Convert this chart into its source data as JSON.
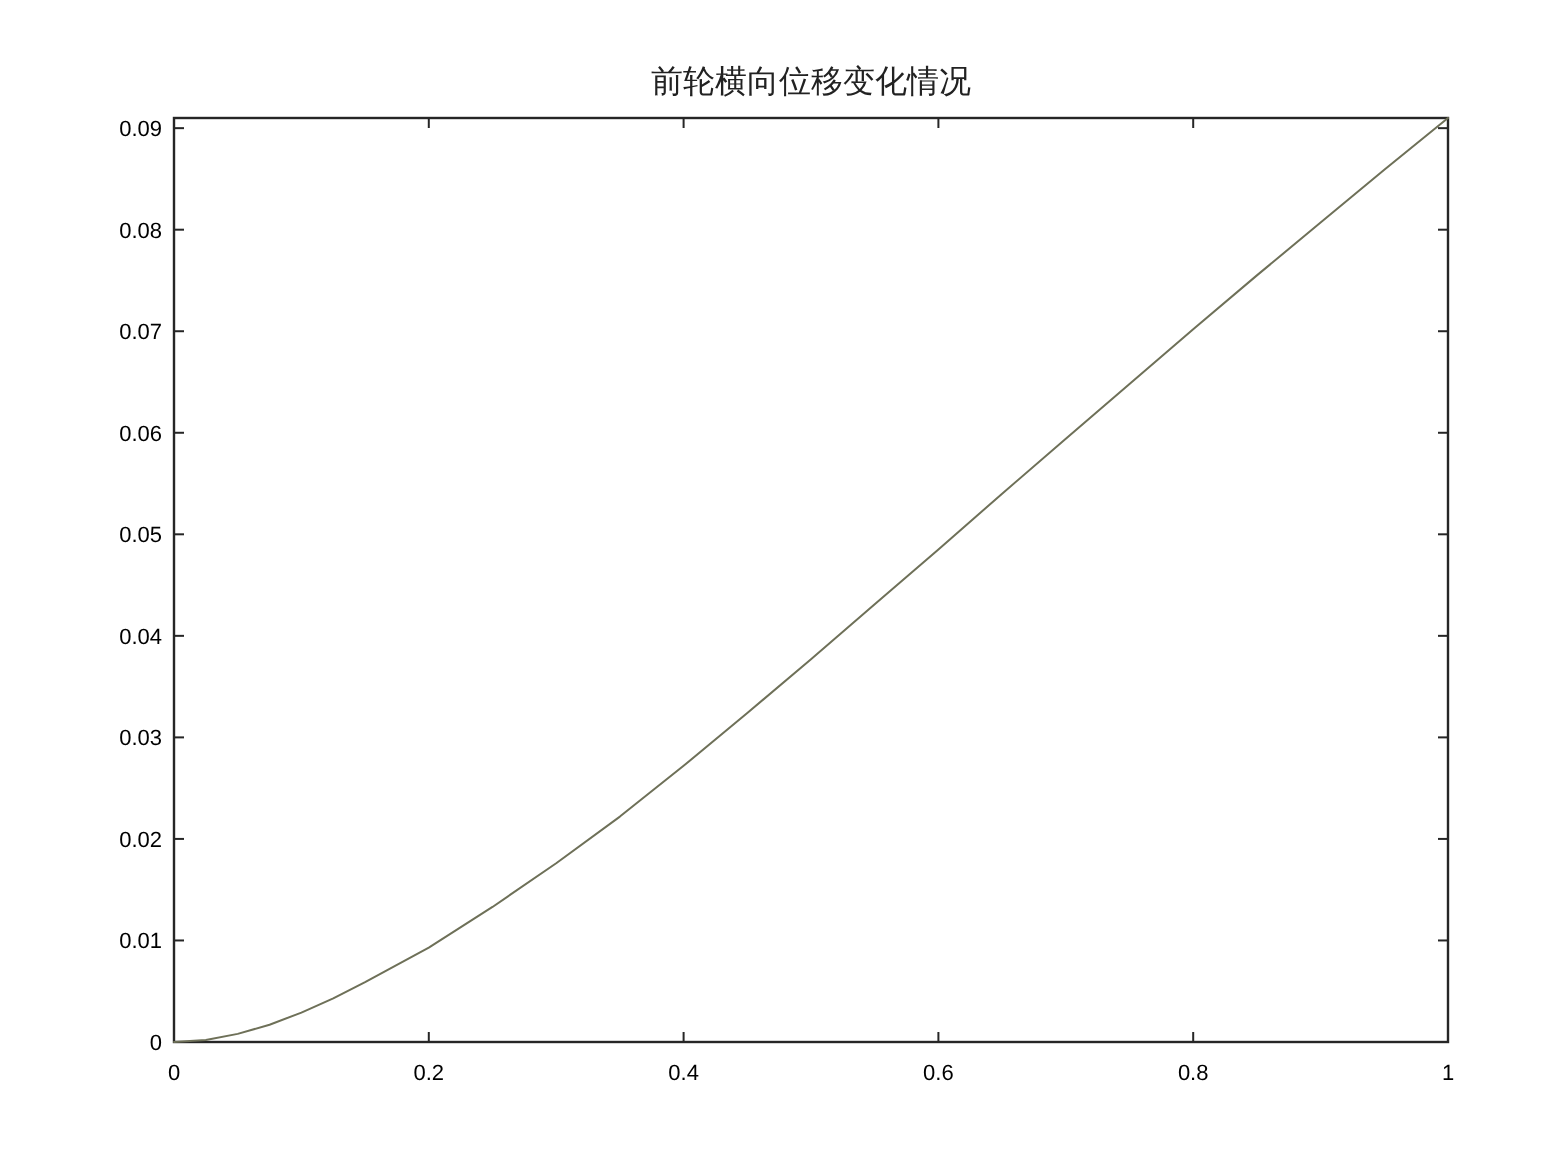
{
  "chart_data": {
    "type": "line",
    "title": "前轮横向位移变化情况",
    "x": [
      0,
      0.025,
      0.05,
      0.075,
      0.1,
      0.125,
      0.15,
      0.2,
      0.25,
      0.3,
      0.35,
      0.4,
      0.45,
      0.5,
      0.55,
      0.6,
      0.65,
      0.7,
      0.75,
      0.8,
      0.85,
      0.9,
      0.95,
      1
    ],
    "series": [
      {
        "color": "#6e7058",
        "values": [
          0,
          0.0002,
          0.0008,
          0.0017,
          0.0029,
          0.0043,
          0.0059,
          0.0093,
          0.0133,
          0.0176,
          0.0222,
          0.0272,
          0.0324,
          0.0377,
          0.0431,
          0.0485,
          0.054,
          0.0594,
          0.0648,
          0.0702,
          0.0755,
          0.0807,
          0.0859,
          0.091
        ]
      }
    ],
    "xlim": [
      0,
      1
    ],
    "ylim": [
      0,
      0.091
    ],
    "xticks": [
      0,
      0.2,
      0.4,
      0.6,
      0.8,
      1
    ],
    "yticks": [
      0,
      0.01,
      0.02,
      0.03,
      0.04,
      0.05,
      0.06,
      0.07,
      0.08,
      0.09
    ]
  }
}
